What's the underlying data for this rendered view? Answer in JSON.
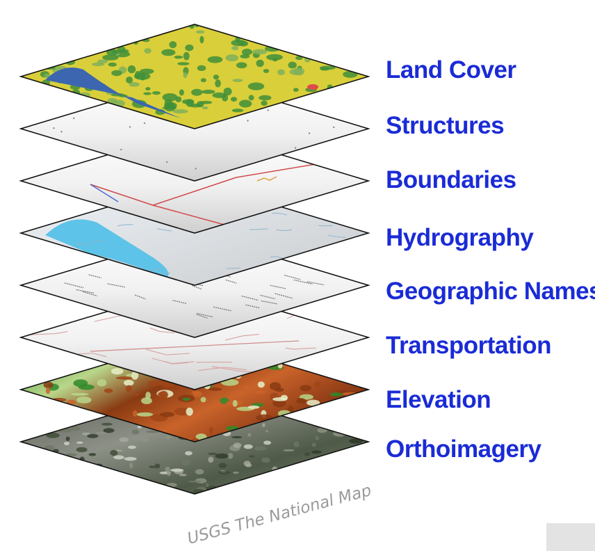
{
  "colors": {
    "label": "#1a2bd6",
    "outline": "#111111",
    "watermark": "#9a9a9a",
    "corner_box": "#e3e3e3"
  },
  "layers": [
    {
      "label": "Land Cover",
      "style": "land-cover"
    },
    {
      "label": "Structures",
      "style": "structures"
    },
    {
      "label": "Boundaries",
      "style": "boundaries"
    },
    {
      "label": "Hydrography",
      "style": "hydrography"
    },
    {
      "label": "Geographic Names",
      "style": "geographic-names"
    },
    {
      "label": "Transportation",
      "style": "transportation"
    },
    {
      "label": "Elevation",
      "style": "elevation"
    },
    {
      "label": "Orthoimagery",
      "style": "orthoimagery"
    }
  ],
  "watermark": "USGS The National Map"
}
